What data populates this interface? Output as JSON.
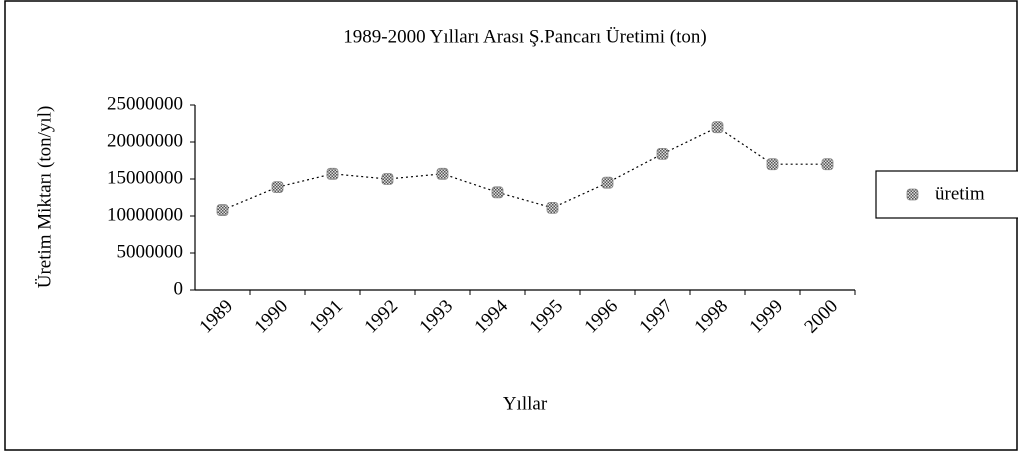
{
  "chart_data": {
    "type": "line",
    "title": "1989-2000 Yılları Arası Ş.Pancarı Üretimi (ton)",
    "xlabel": "Yıllar",
    "ylabel": "Üretim Miktarı (ton/yıl)",
    "categories": [
      "1989",
      "1990",
      "1991",
      "1992",
      "1993",
      "1994",
      "1995",
      "1996",
      "1997",
      "1998",
      "1999",
      "2000"
    ],
    "series": [
      {
        "name": "üretim",
        "color": "#8a8a8a",
        "values": [
          10800000,
          13900000,
          15700000,
          15000000,
          15700000,
          13200000,
          11100000,
          14500000,
          18400000,
          22000000,
          17000000,
          17000000
        ]
      }
    ],
    "ylim": [
      0,
      25000000
    ],
    "yticks": [
      0,
      5000000,
      10000000,
      15000000,
      20000000,
      25000000
    ],
    "grid": false,
    "legend": "right"
  }
}
